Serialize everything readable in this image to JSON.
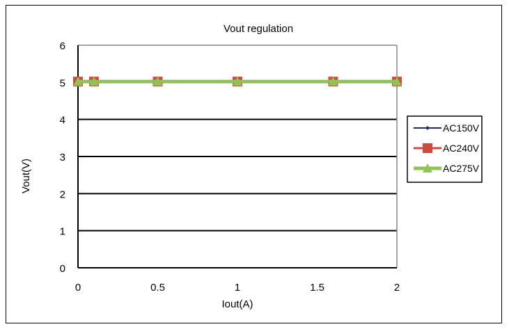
{
  "chart_data": {
    "type": "line",
    "title": "Vout regulation",
    "xlabel": "Iout(A)",
    "ylabel": "Vout(V)",
    "xlim": [
      0,
      2
    ],
    "ylim": [
      0,
      6
    ],
    "xticks": [
      "0",
      "0.5",
      "1",
      "1.5",
      "2"
    ],
    "yticks": [
      "0",
      "1",
      "2",
      "3",
      "4",
      "5",
      "6"
    ],
    "grid": "horizontal",
    "legend_position": "right",
    "series": [
      {
        "name": "AC150V",
        "color": "#1f2a6e",
        "marker": "diamond",
        "x": [
          0,
          0.1,
          0.5,
          1,
          1.6,
          2
        ],
        "y": [
          5.0,
          5.0,
          5.0,
          5.0,
          5.0,
          5.0
        ]
      },
      {
        "name": "AC240V",
        "color": "#cc4b3c",
        "marker": "square",
        "x": [
          0,
          0.1,
          0.5,
          1,
          1.6,
          2
        ],
        "y": [
          5.02,
          5.02,
          5.02,
          5.02,
          5.02,
          5.02
        ]
      },
      {
        "name": "AC275V",
        "color": "#8fc356",
        "marker": "triangle",
        "x": [
          0,
          0.1,
          0.5,
          1,
          1.6,
          2
        ],
        "y": [
          5.02,
          5.02,
          5.02,
          5.02,
          5.02,
          5.02
        ]
      }
    ]
  }
}
